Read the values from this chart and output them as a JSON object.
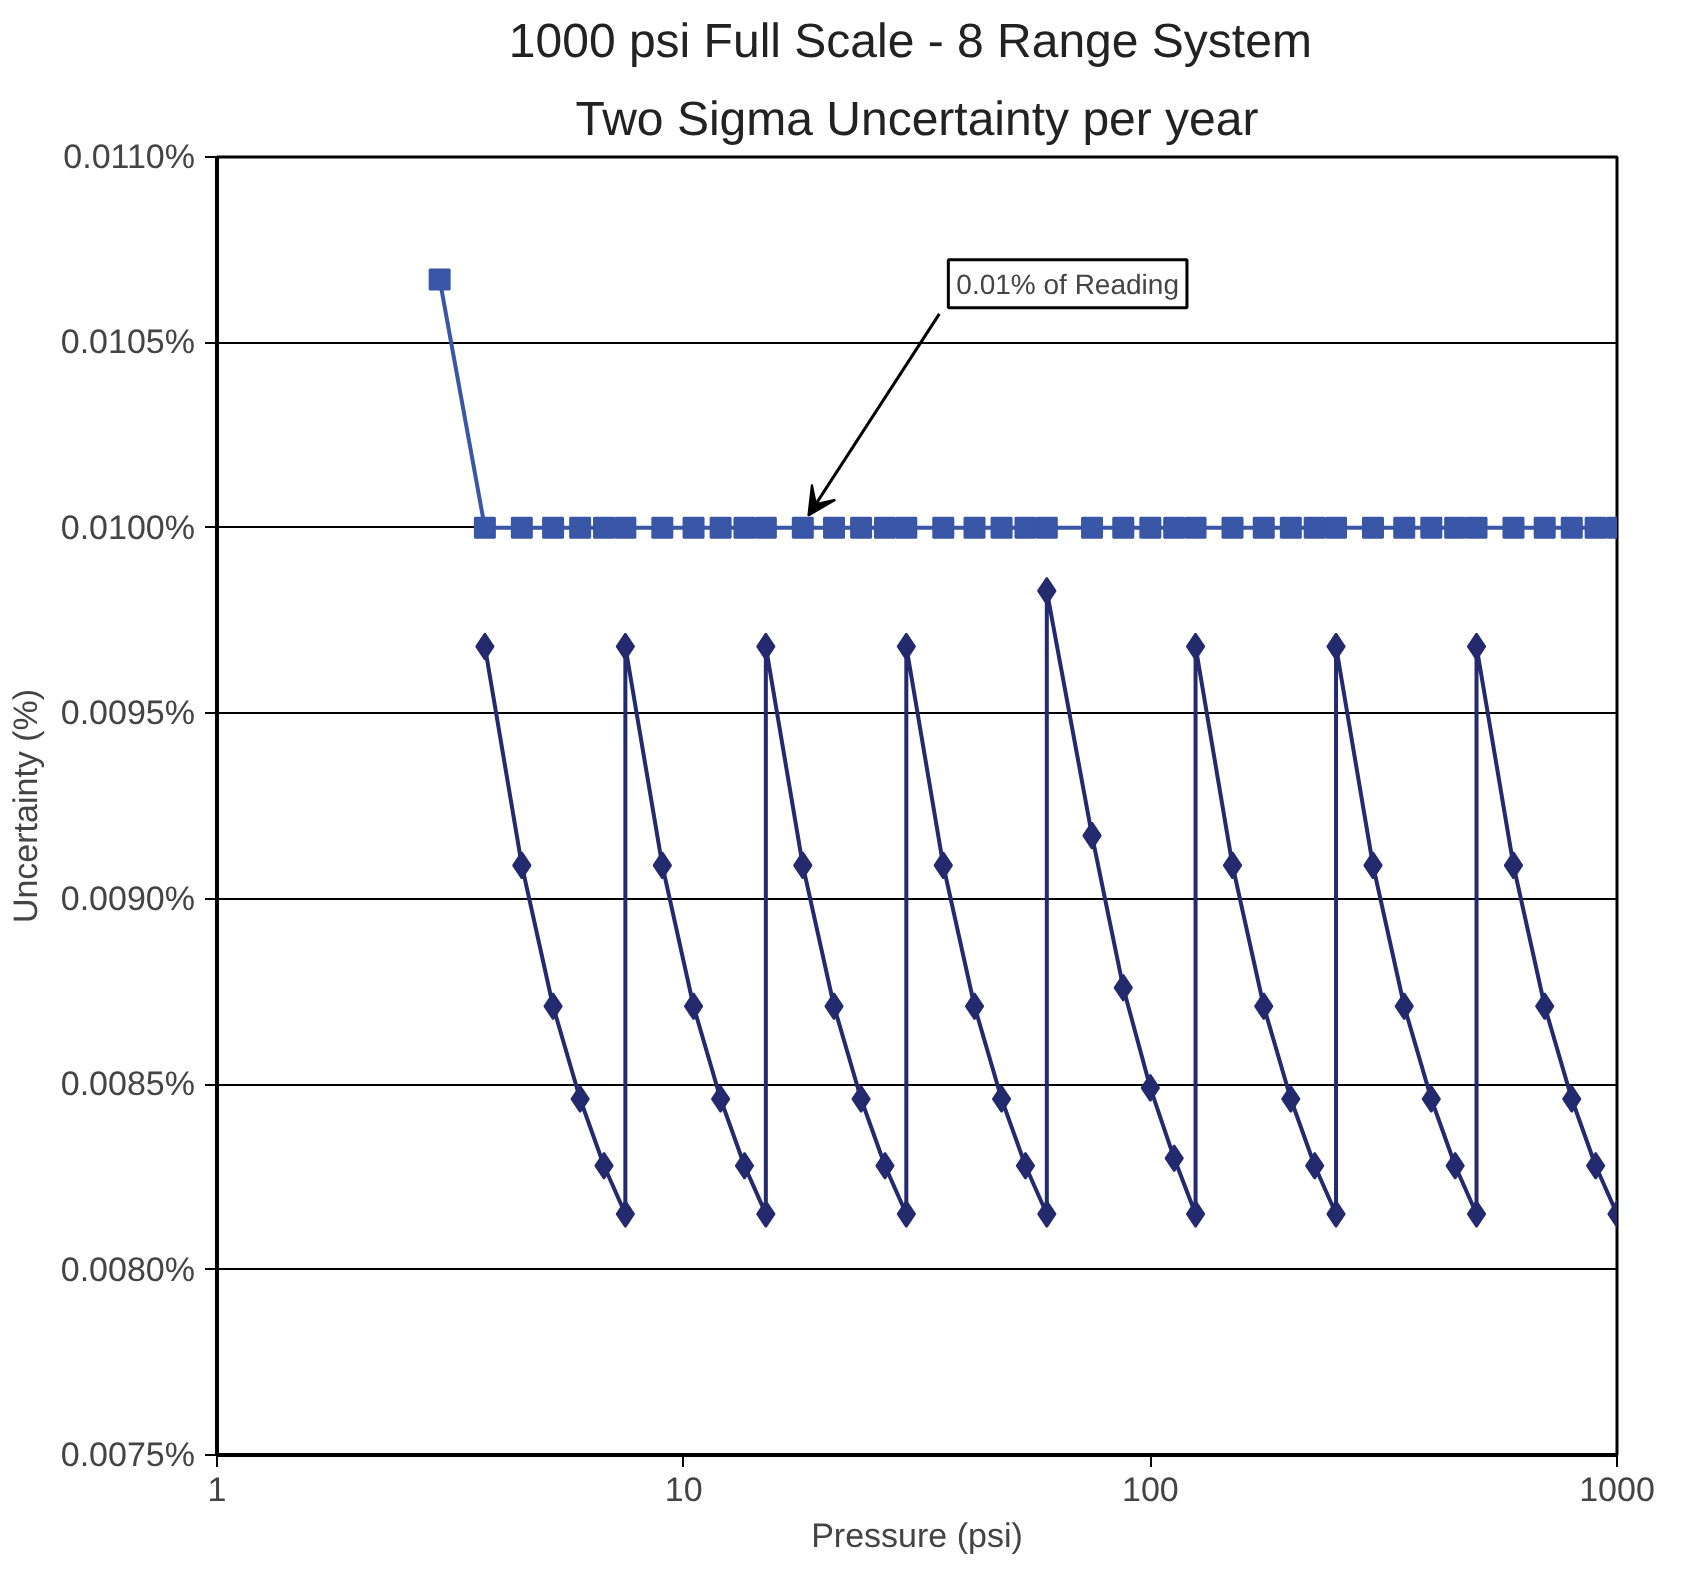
{
  "chart_data": {
    "type": "line",
    "title": "1000 psi  Full Scale - 8 Range System",
    "subtitle": "Two Sigma Uncertainty per year",
    "xlabel": "Pressure (psi)",
    "ylabel": "Uncertainty (%)",
    "log": "x",
    "grid": "y",
    "xlim": [
      1,
      1000
    ],
    "xticks": [
      1,
      10,
      100,
      1000
    ],
    "ylim": [
      0.0075,
      0.011
    ],
    "yticks": [
      {
        "value": 0.0075,
        "label": "0.0075%"
      },
      {
        "value": 0.008,
        "label": "0.0080%"
      },
      {
        "value": 0.0085,
        "label": "0.0085%"
      },
      {
        "value": 0.009,
        "label": "0.0090%"
      },
      {
        "value": 0.0095,
        "label": "0.0095%"
      },
      {
        "value": 0.01,
        "label": "0.0100%"
      },
      {
        "value": 0.0105,
        "label": "0.0105%"
      },
      {
        "value": 0.011,
        "label": "0.0110%"
      }
    ],
    "series": [
      {
        "color": "#232a6e",
        "marker": "diamond",
        "x": [
          3.75,
          4.5,
          5.25,
          6,
          6.75,
          7.5,
          7.5,
          9,
          10.5,
          12,
          13.5,
          15,
          15,
          18,
          21,
          24,
          27,
          30,
          30,
          36,
          42,
          48,
          54,
          60,
          60,
          75,
          87.5,
          100,
          112.5,
          125,
          125,
          150,
          175,
          200,
          225,
          250,
          250,
          300,
          350,
          400,
          450,
          500,
          500,
          600,
          700,
          800,
          900,
          1000
        ],
        "values": [
          0.00968,
          0.00909,
          0.00871,
          0.00846,
          0.00828,
          0.00815,
          0.00968,
          0.00909,
          0.00871,
          0.00846,
          0.00828,
          0.00815,
          0.00968,
          0.00909,
          0.00871,
          0.00846,
          0.00828,
          0.00815,
          0.00968,
          0.00909,
          0.00871,
          0.00846,
          0.00828,
          0.00815,
          0.00983,
          0.00917,
          0.00876,
          0.00849,
          0.0083,
          0.00815,
          0.00968,
          0.00909,
          0.00871,
          0.00846,
          0.00828,
          0.00815,
          0.00968,
          0.00909,
          0.00871,
          0.00846,
          0.00828,
          0.00815,
          0.00968,
          0.00909,
          0.00871,
          0.00846,
          0.00828,
          0.00815
        ]
      },
      {
        "color": "#3a56a6",
        "marker": "square",
        "x": [
          3,
          3.75,
          4.5,
          5.25,
          6,
          6.75,
          7.5,
          9,
          10.5,
          12,
          13.5,
          15,
          18,
          21,
          24,
          27,
          30,
          36,
          42,
          48,
          54,
          60,
          75,
          87.5,
          100,
          112.5,
          125,
          150,
          175,
          200,
          225,
          250,
          300,
          350,
          400,
          450,
          500,
          600,
          700,
          800,
          900,
          1000
        ],
        "values": [
          0.01067,
          0.01,
          0.01,
          0.01,
          0.01,
          0.01,
          0.01,
          0.01,
          0.01,
          0.01,
          0.01,
          0.01,
          0.01,
          0.01,
          0.01,
          0.01,
          0.01,
          0.01,
          0.01,
          0.01,
          0.01,
          0.01,
          0.01,
          0.01,
          0.01,
          0.01,
          0.01,
          0.01,
          0.01,
          0.01,
          0.01,
          0.01,
          0.01,
          0.01,
          0.01,
          0.01,
          0.01,
          0.01,
          0.01,
          0.01,
          0.01,
          0.01
        ]
      }
    ],
    "annotations": [
      {
        "text": "0.01% of Reading",
        "x": 18.5,
        "y": 0.01
      }
    ]
  }
}
